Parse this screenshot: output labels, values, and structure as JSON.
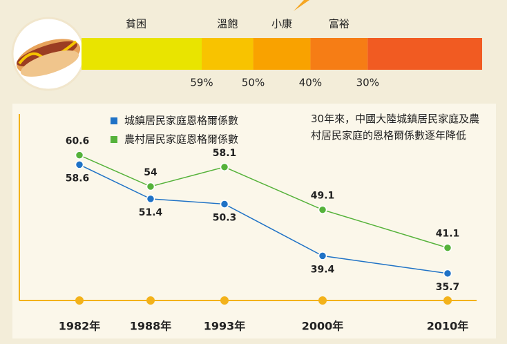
{
  "engel_scale": {
    "levels": [
      "貧困",
      "溫飽",
      "小康",
      "富裕"
    ],
    "thresholds": [
      {
        "value": 59,
        "label": "59%"
      },
      {
        "value": 50,
        "label": "50%"
      },
      {
        "value": 40,
        "label": "40%"
      },
      {
        "value": 30,
        "label": "30%"
      }
    ],
    "lim": [
      80,
      10
    ],
    "colors": [
      "#e9e400",
      "#f8c300",
      "#f9a200",
      "#f67d15",
      "#f15b22"
    ]
  },
  "chart_data": {
    "type": "line",
    "annotation": "30年來，中國大陸城鎮居民家庭及農村居民家庭的恩格爾係數逐年降低",
    "categories": [
      "1982年",
      "1988年",
      "1993年",
      "2000年",
      "2010年"
    ],
    "series": [
      {
        "name": "城鎮居民家庭恩格爾係數",
        "color": "#1f72c6",
        "values": [
          58.6,
          51.4,
          50.3,
          39.4,
          35.7
        ]
      },
      {
        "name": "農村居民家庭恩格爾係數",
        "color": "#55b23a",
        "values": [
          60.6,
          54,
          58.1,
          49.1,
          41.1
        ]
      }
    ],
    "ylim": [
      30,
      62
    ]
  }
}
